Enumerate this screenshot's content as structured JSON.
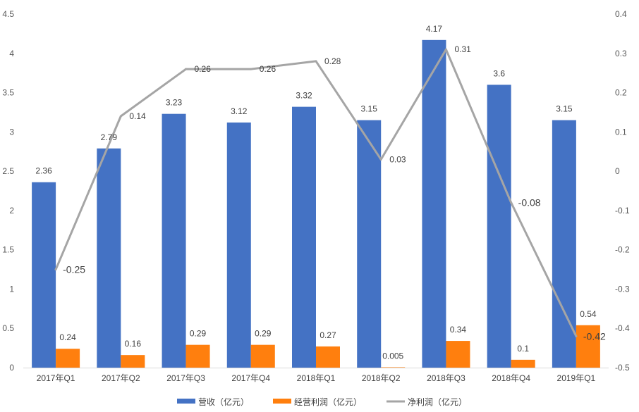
{
  "chart_data": {
    "type": "bar",
    "title": "",
    "xlabel": "",
    "ylabel": "",
    "categories": [
      "2017年Q1",
      "2017年Q2",
      "2017年Q3",
      "2017年Q4",
      "2018年Q1",
      "2018年Q2",
      "2018年Q3",
      "2018年Q4",
      "2019年Q1"
    ],
    "ylim": [
      0,
      4.5
    ],
    "yticks": [
      "0",
      "0.5",
      "1",
      "1.5",
      "2",
      "2.5",
      "3",
      "3.5",
      "4",
      "4.5"
    ],
    "y2lim": [
      -0.5,
      0.4
    ],
    "y2ticks": [
      "-0.5",
      "-0.4",
      "-0.3",
      "-0.2",
      "-0.1",
      "0",
      "0.1",
      "0.2",
      "0.3",
      "0.4"
    ],
    "grid": false,
    "legend_position": "bottom",
    "series": [
      {
        "name": "营收（亿元）",
        "type": "bar",
        "axis": "left",
        "color": "#4472C4",
        "values": [
          2.36,
          2.79,
          3.23,
          3.12,
          3.32,
          3.15,
          4.17,
          3.6,
          3.15
        ],
        "labels": [
          "2.36",
          "2.79",
          "3.23",
          "3.12",
          "3.32",
          "3.15",
          "4.17",
          "3.6",
          "3.15"
        ]
      },
      {
        "name": "经营利润（亿元）",
        "type": "bar",
        "axis": "left",
        "color": "#FF7F0E",
        "values": [
          0.24,
          0.16,
          0.29,
          0.29,
          0.27,
          0.005,
          0.34,
          0.1,
          0.54
        ],
        "labels": [
          "0.24",
          "0.16",
          "0.29",
          "0.29",
          "0.27",
          "0.005",
          "0.34",
          "0.1",
          "0.54"
        ]
      },
      {
        "name": "净利润（亿元）",
        "type": "line",
        "axis": "right",
        "color": "#A5A5A5",
        "values": [
          -0.25,
          0.14,
          0.26,
          0.26,
          0.28,
          0.03,
          0.31,
          -0.08,
          -0.42
        ],
        "labels": [
          "-0.25",
          "0.14",
          "0.26",
          "0.26",
          "0.28",
          "0.03",
          "0.31",
          "-0.08",
          "-0.42"
        ]
      }
    ]
  }
}
